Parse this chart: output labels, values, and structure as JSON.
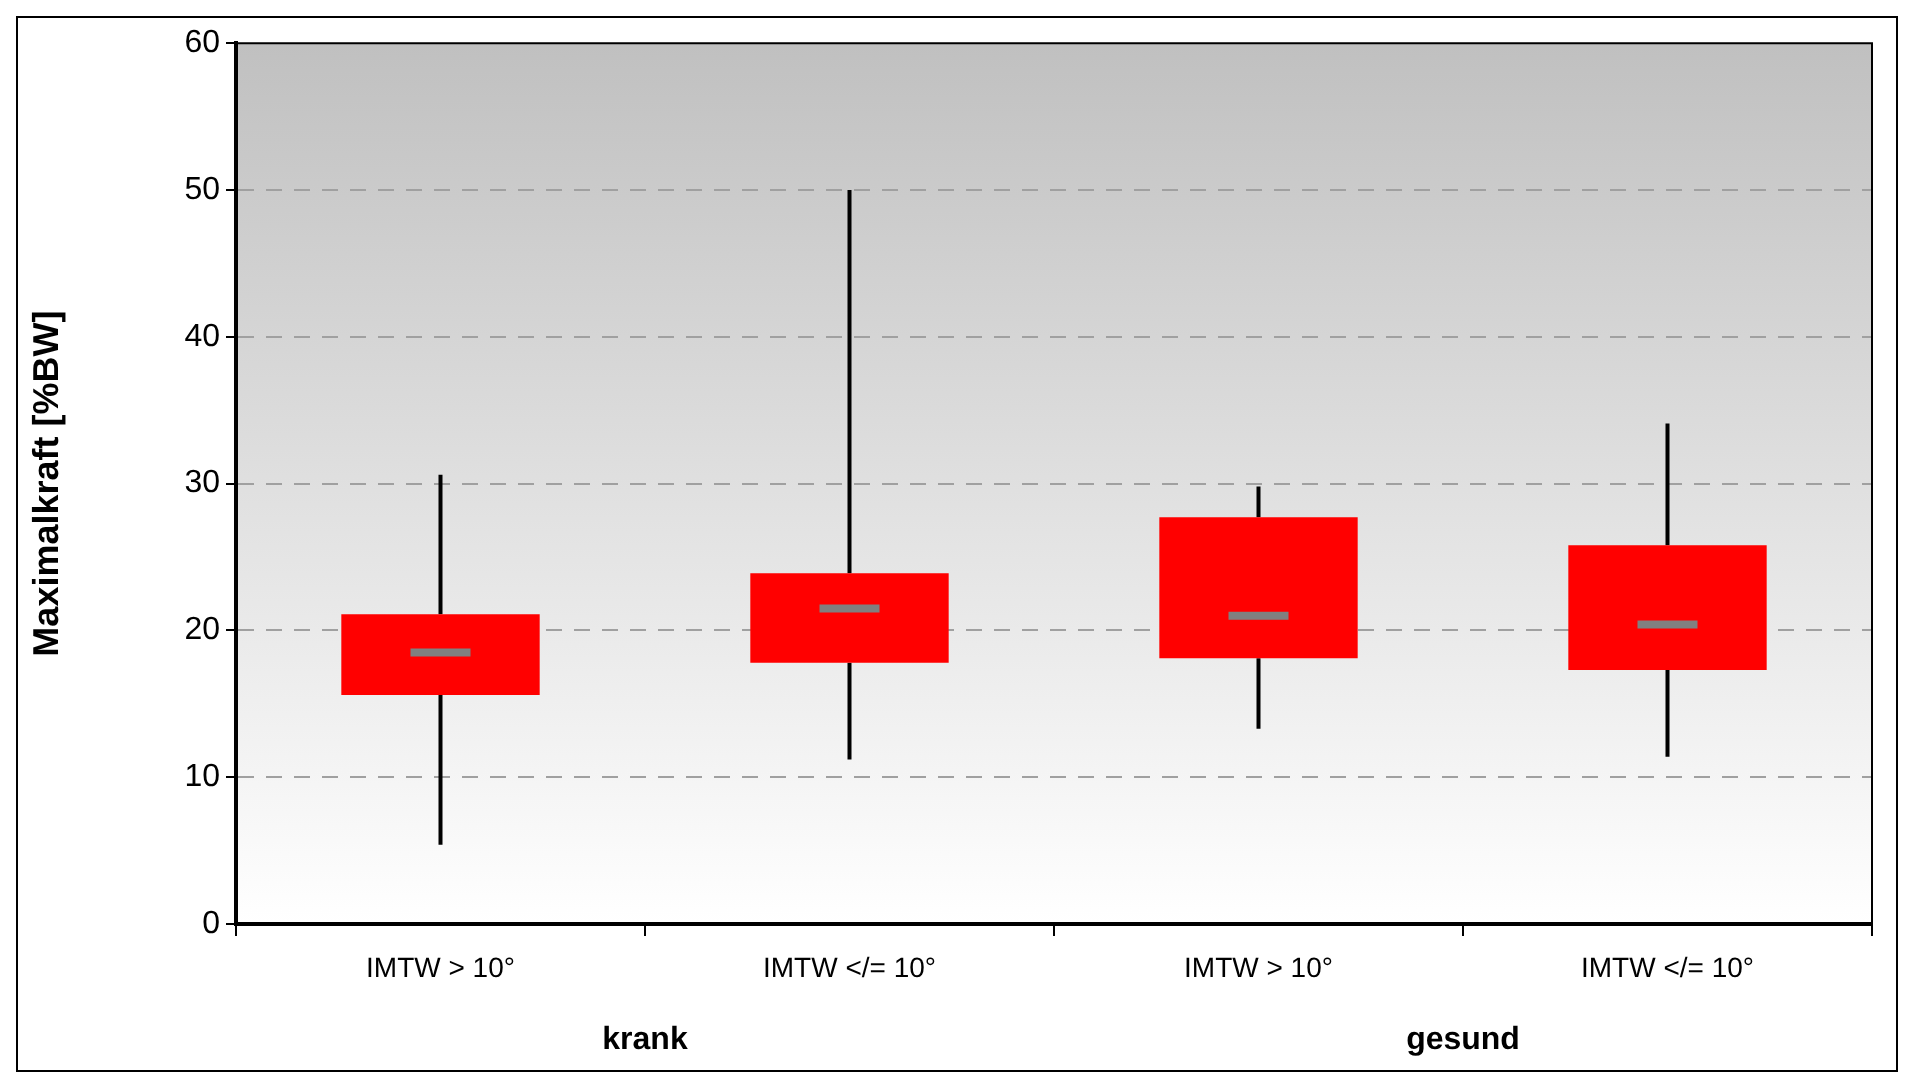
{
  "chart_data": {
    "type": "box",
    "ylabel": "Maximalkraft [%BW]",
    "categories": [
      "IMTW > 10°",
      "IMTW </= 10°",
      "IMTW > 10°",
      "IMTW </= 10°"
    ],
    "annotations": [
      "krank",
      "gesund"
    ],
    "series": [
      {
        "color": "#ff0000",
        "boxes": [
          {
            "low": 5.4,
            "q1": 15.6,
            "median": 18.5,
            "q3": 21.1,
            "high": 30.6
          },
          {
            "low": 11.2,
            "q1": 17.8,
            "median": 21.5,
            "q3": 23.9,
            "high": 50.0
          },
          {
            "low": 13.3,
            "q1": 18.1,
            "median": 21.0,
            "q3": 27.7,
            "high": 29.8
          },
          {
            "low": 11.4,
            "q1": 17.3,
            "median": 20.4,
            "q3": 25.8,
            "high": 34.1
          }
        ]
      }
    ],
    "ylim": [
      0,
      60
    ],
    "yticks": [
      0,
      10,
      20,
      30,
      40,
      50,
      60
    ],
    "grid": "y",
    "legend": false
  }
}
